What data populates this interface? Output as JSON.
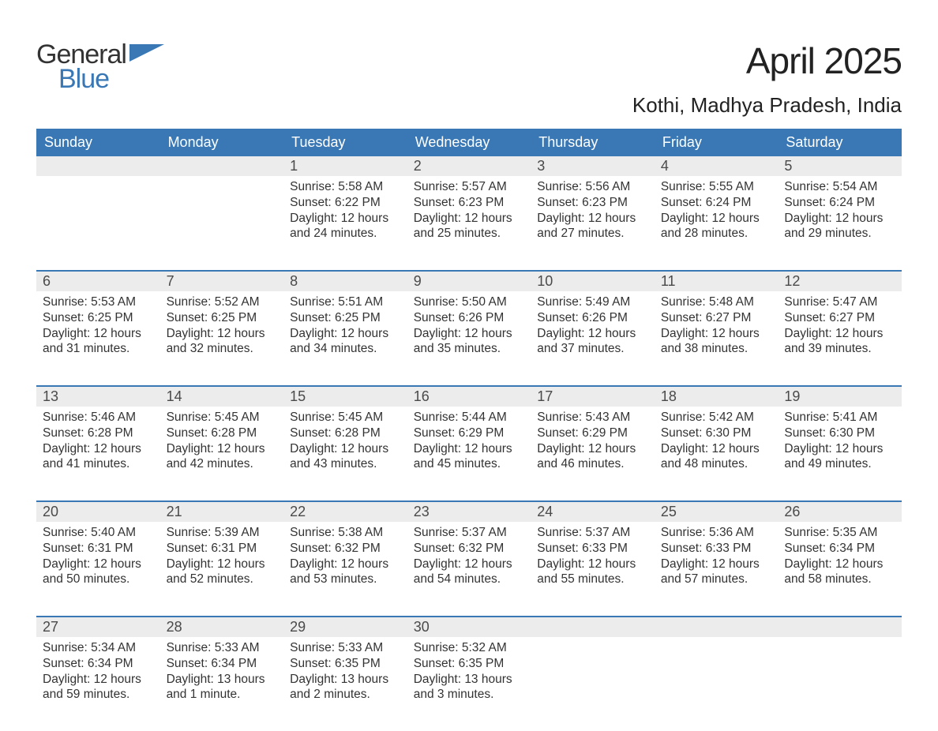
{
  "brand": {
    "word1": "General",
    "word2": "Blue",
    "logo_color": "#3a78b5"
  },
  "title": "April 2025",
  "location": "Kothi, Madhya Pradesh, India",
  "colors": {
    "header_bg": "#3a78b5",
    "header_text": "#ffffff",
    "daynum_bg": "#ececec",
    "text": "#333333",
    "rule": "#3a78b5"
  },
  "fonts": {
    "title_pt": 46,
    "location_pt": 26,
    "weekday_pt": 18,
    "daynum_pt": 18,
    "body_pt": 15.5
  },
  "weekdays": [
    "Sunday",
    "Monday",
    "Tuesday",
    "Wednesday",
    "Thursday",
    "Friday",
    "Saturday"
  ],
  "labels": {
    "sunrise": "Sunrise",
    "sunset": "Sunset",
    "daylight": "Daylight"
  },
  "weeks": [
    [
      null,
      null,
      {
        "n": "1",
        "sunrise": "5:58 AM",
        "sunset": "6:22 PM",
        "daylight": "12 hours and 24 minutes."
      },
      {
        "n": "2",
        "sunrise": "5:57 AM",
        "sunset": "6:23 PM",
        "daylight": "12 hours and 25 minutes."
      },
      {
        "n": "3",
        "sunrise": "5:56 AM",
        "sunset": "6:23 PM",
        "daylight": "12 hours and 27 minutes."
      },
      {
        "n": "4",
        "sunrise": "5:55 AM",
        "sunset": "6:24 PM",
        "daylight": "12 hours and 28 minutes."
      },
      {
        "n": "5",
        "sunrise": "5:54 AM",
        "sunset": "6:24 PM",
        "daylight": "12 hours and 29 minutes."
      }
    ],
    [
      {
        "n": "6",
        "sunrise": "5:53 AM",
        "sunset": "6:25 PM",
        "daylight": "12 hours and 31 minutes."
      },
      {
        "n": "7",
        "sunrise": "5:52 AM",
        "sunset": "6:25 PM",
        "daylight": "12 hours and 32 minutes."
      },
      {
        "n": "8",
        "sunrise": "5:51 AM",
        "sunset": "6:25 PM",
        "daylight": "12 hours and 34 minutes."
      },
      {
        "n": "9",
        "sunrise": "5:50 AM",
        "sunset": "6:26 PM",
        "daylight": "12 hours and 35 minutes."
      },
      {
        "n": "10",
        "sunrise": "5:49 AM",
        "sunset": "6:26 PM",
        "daylight": "12 hours and 37 minutes."
      },
      {
        "n": "11",
        "sunrise": "5:48 AM",
        "sunset": "6:27 PM",
        "daylight": "12 hours and 38 minutes."
      },
      {
        "n": "12",
        "sunrise": "5:47 AM",
        "sunset": "6:27 PM",
        "daylight": "12 hours and 39 minutes."
      }
    ],
    [
      {
        "n": "13",
        "sunrise": "5:46 AM",
        "sunset": "6:28 PM",
        "daylight": "12 hours and 41 minutes."
      },
      {
        "n": "14",
        "sunrise": "5:45 AM",
        "sunset": "6:28 PM",
        "daylight": "12 hours and 42 minutes."
      },
      {
        "n": "15",
        "sunrise": "5:45 AM",
        "sunset": "6:28 PM",
        "daylight": "12 hours and 43 minutes."
      },
      {
        "n": "16",
        "sunrise": "5:44 AM",
        "sunset": "6:29 PM",
        "daylight": "12 hours and 45 minutes."
      },
      {
        "n": "17",
        "sunrise": "5:43 AM",
        "sunset": "6:29 PM",
        "daylight": "12 hours and 46 minutes."
      },
      {
        "n": "18",
        "sunrise": "5:42 AM",
        "sunset": "6:30 PM",
        "daylight": "12 hours and 48 minutes."
      },
      {
        "n": "19",
        "sunrise": "5:41 AM",
        "sunset": "6:30 PM",
        "daylight": "12 hours and 49 minutes."
      }
    ],
    [
      {
        "n": "20",
        "sunrise": "5:40 AM",
        "sunset": "6:31 PM",
        "daylight": "12 hours and 50 minutes."
      },
      {
        "n": "21",
        "sunrise": "5:39 AM",
        "sunset": "6:31 PM",
        "daylight": "12 hours and 52 minutes."
      },
      {
        "n": "22",
        "sunrise": "5:38 AM",
        "sunset": "6:32 PM",
        "daylight": "12 hours and 53 minutes."
      },
      {
        "n": "23",
        "sunrise": "5:37 AM",
        "sunset": "6:32 PM",
        "daylight": "12 hours and 54 minutes."
      },
      {
        "n": "24",
        "sunrise": "5:37 AM",
        "sunset": "6:33 PM",
        "daylight": "12 hours and 55 minutes."
      },
      {
        "n": "25",
        "sunrise": "5:36 AM",
        "sunset": "6:33 PM",
        "daylight": "12 hours and 57 minutes."
      },
      {
        "n": "26",
        "sunrise": "5:35 AM",
        "sunset": "6:34 PM",
        "daylight": "12 hours and 58 minutes."
      }
    ],
    [
      {
        "n": "27",
        "sunrise": "5:34 AM",
        "sunset": "6:34 PM",
        "daylight": "12 hours and 59 minutes."
      },
      {
        "n": "28",
        "sunrise": "5:33 AM",
        "sunset": "6:34 PM",
        "daylight": "13 hours and 1 minute."
      },
      {
        "n": "29",
        "sunrise": "5:33 AM",
        "sunset": "6:35 PM",
        "daylight": "13 hours and 2 minutes."
      },
      {
        "n": "30",
        "sunrise": "5:32 AM",
        "sunset": "6:35 PM",
        "daylight": "13 hours and 3 minutes."
      },
      null,
      null,
      null
    ]
  ]
}
